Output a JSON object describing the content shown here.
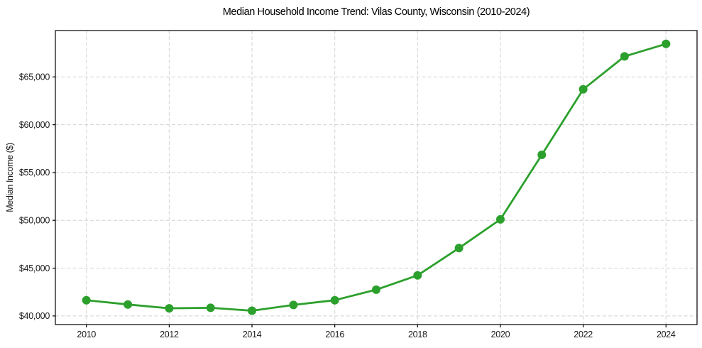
{
  "figure": {
    "title": "Median Household Income Trend: Vilas County, Wisconsin (2010-2024)"
  },
  "chart_data": {
    "type": "line",
    "title": "Median Household Income Trend: Vilas County, Wisconsin (2010-2024)",
    "xlabel": "",
    "ylabel": "Median Income ($)",
    "x": [
      2010,
      2011,
      2012,
      2013,
      2014,
      2015,
      2016,
      2017,
      2018,
      2019,
      2020,
      2021,
      2022,
      2023,
      2024
    ],
    "series": [
      {
        "name": "Median household income",
        "values": [
          41650,
          41200,
          40800,
          40850,
          40550,
          41150,
          41650,
          42750,
          44250,
          47100,
          50100,
          56850,
          63700,
          67150,
          68450
        ]
      }
    ],
    "xticks": [
      2010,
      2012,
      2014,
      2016,
      2018,
      2020,
      2022,
      2024
    ],
    "xtick_labels": [
      "2010",
      "2012",
      "2014",
      "2016",
      "2018",
      "2020",
      "2022",
      "2024"
    ],
    "yticks": [
      40000,
      45000,
      50000,
      55000,
      60000,
      65000
    ],
    "ytick_labels": [
      "$40,000",
      "$45,000",
      "$50,000",
      "$55,000",
      "$60,000",
      "$65,000"
    ],
    "xlim": [
      2009.25,
      2024.75
    ],
    "ylim": [
      39100,
      69850
    ],
    "grid": {
      "visible": true,
      "style": "dashed",
      "color": "#c9c9c9"
    },
    "legend": {
      "visible": false
    },
    "style": {
      "line_color": "#2ca02c",
      "marker": "circle",
      "marker_color": "#2ca02c",
      "background": "#ffffff",
      "spine_color": "#000000"
    }
  }
}
